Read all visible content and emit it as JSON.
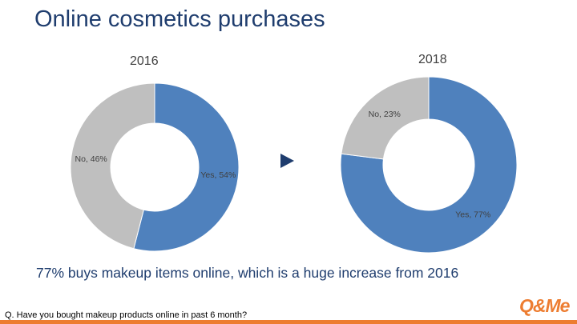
{
  "slide": {
    "title": "Online cosmetics purchases",
    "summary": "77% buys makeup items online, which is a huge increase from 2016",
    "question": "Q. Have you bought makeup products online in past 6 month?",
    "logo_text": "Q&Me"
  },
  "colors": {
    "yes": "#4f81bd",
    "no": "#bfbfbf",
    "title": "#1f3d6e",
    "accent": "#ed7d31"
  },
  "chart_data": [
    {
      "type": "pie",
      "variant": "donut",
      "title": "2016",
      "categories": [
        "Yes",
        "No"
      ],
      "values": [
        54,
        46
      ],
      "unit": "%",
      "data_labels": [
        "Yes, 54%",
        "No, 46%"
      ]
    },
    {
      "type": "pie",
      "variant": "donut",
      "title": "2018",
      "categories": [
        "Yes",
        "No"
      ],
      "values": [
        77,
        23
      ],
      "unit": "%",
      "data_labels": [
        "Yes, 77%",
        "No, 23%"
      ]
    }
  ]
}
